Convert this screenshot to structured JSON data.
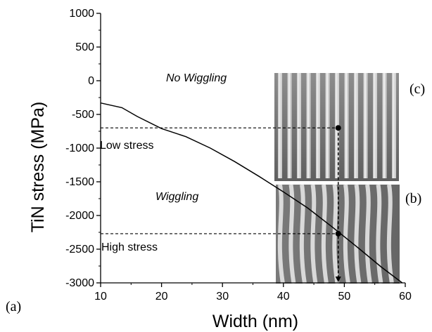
{
  "chart_data": {
    "type": "line",
    "xlabel": "Width (nm)",
    "ylabel": "TiN stress (MPa)",
    "xlim": [
      10,
      60
    ],
    "ylim": [
      -3000,
      1000
    ],
    "xticks": [
      10,
      20,
      30,
      40,
      50,
      60
    ],
    "yticks": [
      1000,
      500,
      0,
      -500,
      -1000,
      -1500,
      -2000,
      -2500,
      -3000
    ],
    "grid": false,
    "series": [
      {
        "x": [
          10,
          13.5,
          16,
          20,
          24,
          28,
          32,
          36,
          40,
          44,
          48,
          52,
          56,
          59.5
        ],
        "y": [
          -330,
          -400,
          -530,
          -710,
          -830,
          -1000,
          -1200,
          -1420,
          -1650,
          -1890,
          -2170,
          -2460,
          -2760,
          -3000
        ]
      }
    ],
    "annotations": {
      "no_wiggling": "No Wiggling",
      "wiggling": "Wiggling",
      "low_stress": "Low stress",
      "high_stress": "High stress"
    },
    "reference_points": [
      {
        "x": 49,
        "y": -700
      },
      {
        "x": 49,
        "y": -2270
      }
    ],
    "panel_labels": {
      "a": "(a)",
      "b": "(b)",
      "c": "(c)"
    },
    "line_color": "#000000"
  }
}
